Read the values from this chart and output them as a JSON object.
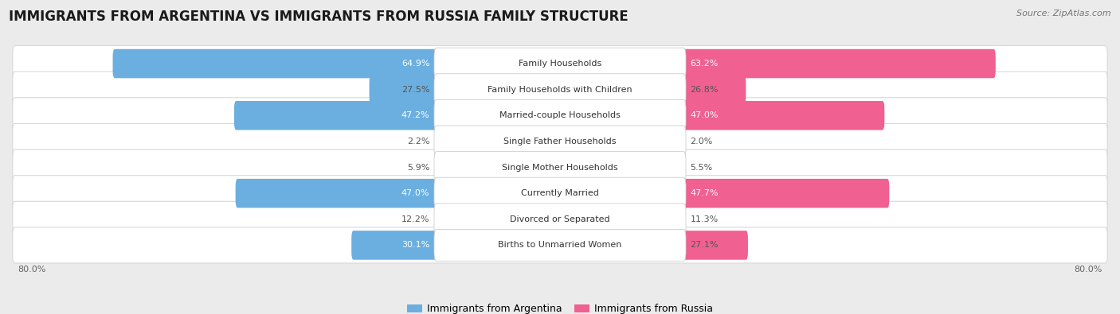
{
  "title": "IMMIGRANTS FROM ARGENTINA VS IMMIGRANTS FROM RUSSIA FAMILY STRUCTURE",
  "source": "Source: ZipAtlas.com",
  "categories": [
    "Family Households",
    "Family Households with Children",
    "Married-couple Households",
    "Single Father Households",
    "Single Mother Households",
    "Currently Married",
    "Divorced or Separated",
    "Births to Unmarried Women"
  ],
  "argentina_values": [
    64.9,
    27.5,
    47.2,
    2.2,
    5.9,
    47.0,
    12.2,
    30.1
  ],
  "russia_values": [
    63.2,
    26.8,
    47.0,
    2.0,
    5.5,
    47.7,
    11.3,
    27.1
  ],
  "argentina_color_strong": "#6aafe0",
  "argentina_color_light": "#b3d4ee",
  "russia_color_strong": "#f06090",
  "russia_color_light": "#f5b8cc",
  "axis_limit": 80.0,
  "background_color": "#ebebeb",
  "row_bg_even": "#f5f5f5",
  "row_bg_odd": "#efefef",
  "legend_label_argentina": "Immigrants from Argentina",
  "legend_label_russia": "Immigrants from Russia",
  "title_fontsize": 12,
  "source_fontsize": 8,
  "bar_label_fontsize": 8,
  "cat_label_fontsize": 8
}
